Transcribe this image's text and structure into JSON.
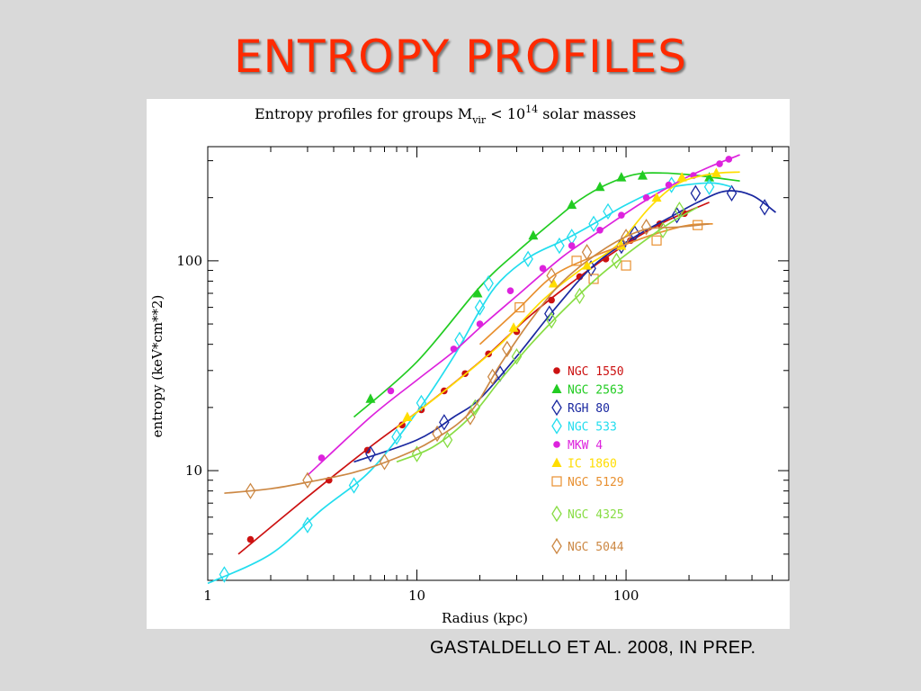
{
  "slide": {
    "title": "ENTROPY PROFILES",
    "citation": "GASTALDELLO ET AL.  2008, IN PREP."
  },
  "chart_data": {
    "type": "scatter",
    "title_parts": {
      "prefix": "Entropy profiles for groups M",
      "subscript": "vir",
      "mid": " < 10",
      "superscript": "14",
      "suffix": " solar masses"
    },
    "xlabel": "Radius (kpc)",
    "ylabel": "entropy (keV*cm**2)",
    "xscale": "log",
    "yscale": "log",
    "xlim": [
      1,
      600
    ],
    "ylim": [
      3,
      350
    ],
    "xticklabels": [
      {
        "value": 1,
        "label": "1"
      },
      {
        "value": 10,
        "label": "10"
      },
      {
        "value": 100,
        "label": "100"
      }
    ],
    "yticklabels": [
      {
        "value": 10,
        "label": "10"
      },
      {
        "value": 100,
        "label": "100"
      }
    ],
    "legend_position": "lower-right",
    "series": [
      {
        "name": "NGC 1550",
        "color": "#cc1111",
        "marker": "dot",
        "points": [
          [
            1.6,
            4.7
          ],
          [
            3.8,
            9
          ],
          [
            5.8,
            12.5
          ],
          [
            8.5,
            16.5
          ],
          [
            10.5,
            19.5
          ],
          [
            13.5,
            24
          ],
          [
            17,
            29
          ],
          [
            22,
            36
          ],
          [
            30,
            46
          ],
          [
            44,
            65
          ],
          [
            60,
            84
          ],
          [
            80,
            102
          ],
          [
            105,
            125
          ],
          [
            145,
            150
          ],
          [
            190,
            168
          ]
        ],
        "curve": [
          [
            1.4,
            4
          ],
          [
            3,
            7.5
          ],
          [
            6,
            13
          ],
          [
            10,
            19
          ],
          [
            20,
            33
          ],
          [
            35,
            55
          ],
          [
            60,
            84
          ],
          [
            100,
            120
          ],
          [
            150,
            152
          ],
          [
            250,
            190
          ]
        ]
      },
      {
        "name": "NGC 2563",
        "color": "#22cc22",
        "marker": "triangle",
        "points": [
          [
            6,
            22
          ],
          [
            19.5,
            70
          ],
          [
            36,
            132
          ],
          [
            55,
            185
          ],
          [
            75,
            225
          ],
          [
            95,
            250
          ],
          [
            120,
            255
          ],
          [
            250,
            250
          ]
        ],
        "curve": [
          [
            5,
            18
          ],
          [
            10,
            33
          ],
          [
            20,
            75
          ],
          [
            30,
            110
          ],
          [
            45,
            155
          ],
          [
            60,
            195
          ],
          [
            80,
            230
          ],
          [
            110,
            258
          ],
          [
            150,
            262
          ],
          [
            220,
            255
          ],
          [
            350,
            240
          ]
        ]
      },
      {
        "name": "RGH 80",
        "color": "#1a28a0",
        "marker": "diamond",
        "points": [
          [
            6,
            12
          ],
          [
            13.5,
            17
          ],
          [
            25,
            29
          ],
          [
            43,
            56
          ],
          [
            68,
            92
          ],
          [
            95,
            118
          ],
          [
            110,
            135
          ],
          [
            175,
            165
          ],
          [
            215,
            210
          ],
          [
            320,
            210
          ],
          [
            460,
            180
          ]
        ],
        "curve": [
          [
            5,
            11
          ],
          [
            10,
            14
          ],
          [
            15,
            18
          ],
          [
            20,
            22
          ],
          [
            30,
            35
          ],
          [
            45,
            58
          ],
          [
            70,
            95
          ],
          [
            110,
            130
          ],
          [
            160,
            160
          ],
          [
            220,
            190
          ],
          [
            300,
            215
          ],
          [
            400,
            205
          ],
          [
            520,
            170
          ]
        ]
      },
      {
        "name": "NGC 533",
        "color": "#22ddee",
        "marker": "diamond",
        "points": [
          [
            1.2,
            3.2
          ],
          [
            3,
            5.5
          ],
          [
            5,
            8.5
          ],
          [
            8,
            14.5
          ],
          [
            10.5,
            21
          ],
          [
            16,
            42
          ],
          [
            20,
            60
          ],
          [
            22,
            78
          ],
          [
            34,
            102
          ],
          [
            48,
            118
          ],
          [
            55,
            130
          ],
          [
            70,
            150
          ],
          [
            82,
            172
          ],
          [
            165,
            230
          ],
          [
            250,
            225
          ]
        ],
        "curve": [
          [
            1,
            2.9
          ],
          [
            2,
            4
          ],
          [
            3.5,
            6.5
          ],
          [
            6,
            10
          ],
          [
            10,
            19
          ],
          [
            15,
            35
          ],
          [
            20,
            58
          ],
          [
            25,
            80
          ],
          [
            35,
            105
          ],
          [
            50,
            125
          ],
          [
            70,
            150
          ],
          [
            100,
            185
          ],
          [
            150,
            220
          ],
          [
            250,
            235
          ],
          [
            320,
            225
          ]
        ]
      },
      {
        "name": "MKW 4",
        "color": "#dd22dd",
        "marker": "dot",
        "points": [
          [
            3.5,
            11.5
          ],
          [
            7.5,
            24
          ],
          [
            15,
            38
          ],
          [
            20,
            50
          ],
          [
            28,
            72
          ],
          [
            40,
            92
          ],
          [
            55,
            118
          ],
          [
            75,
            140
          ],
          [
            95,
            165
          ],
          [
            125,
            200
          ],
          [
            160,
            230
          ],
          [
            210,
            255
          ],
          [
            280,
            290
          ],
          [
            310,
            305
          ]
        ],
        "curve": [
          [
            3,
            9.5
          ],
          [
            6,
            18
          ],
          [
            10,
            27
          ],
          [
            15,
            37
          ],
          [
            20,
            48
          ],
          [
            30,
            68
          ],
          [
            50,
            105
          ],
          [
            80,
            145
          ],
          [
            120,
            190
          ],
          [
            180,
            240
          ],
          [
            250,
            280
          ],
          [
            350,
            320
          ]
        ]
      },
      {
        "name": "IC 1860",
        "color": "#ffdd00",
        "marker": "triangle",
        "points": [
          [
            9,
            18
          ],
          [
            29,
            48
          ],
          [
            45,
            78
          ],
          [
            65,
            95
          ],
          [
            95,
            118
          ],
          [
            140,
            200
          ],
          [
            185,
            250
          ],
          [
            270,
            262
          ]
        ],
        "curve": [
          [
            8,
            16
          ],
          [
            15,
            26
          ],
          [
            25,
            40
          ],
          [
            40,
            65
          ],
          [
            60,
            90
          ],
          [
            90,
            118
          ],
          [
            130,
            180
          ],
          [
            180,
            235
          ],
          [
            260,
            260
          ],
          [
            350,
            265
          ]
        ]
      },
      {
        "name": "NGC 5129",
        "color": "#e89030",
        "marker": "square",
        "points": [
          [
            31,
            60
          ],
          [
            58,
            100
          ],
          [
            70,
            82
          ],
          [
            100,
            95
          ],
          [
            140,
            125
          ],
          [
            220,
            148
          ]
        ],
        "curve": [
          [
            20,
            40
          ],
          [
            30,
            58
          ],
          [
            45,
            85
          ],
          [
            70,
            105
          ],
          [
            100,
            120
          ],
          [
            140,
            135
          ],
          [
            200,
            148
          ],
          [
            260,
            150
          ]
        ]
      },
      {
        "name": "NGC 4325",
        "color": "#88dd44",
        "marker": "diamond",
        "points": [
          [
            10,
            12
          ],
          [
            14,
            14
          ],
          [
            19,
            20
          ],
          [
            30,
            35
          ],
          [
            44,
            52
          ],
          [
            60,
            68
          ],
          [
            90,
            100
          ],
          [
            150,
            140
          ],
          [
            180,
            175
          ]
        ],
        "curve": [
          [
            8,
            11
          ],
          [
            12,
            13
          ],
          [
            18,
            18
          ],
          [
            25,
            27
          ],
          [
            35,
            40
          ],
          [
            50,
            58
          ],
          [
            75,
            85
          ],
          [
            110,
            115
          ],
          [
            160,
            150
          ],
          [
            220,
            180
          ]
        ]
      },
      {
        "name": "NGC 5044",
        "color": "#cc8844",
        "marker": "diamond",
        "points": [
          [
            1.6,
            8
          ],
          [
            3,
            9
          ],
          [
            7,
            11
          ],
          [
            12.5,
            15
          ],
          [
            18,
            18
          ],
          [
            23,
            28
          ],
          [
            27,
            38
          ],
          [
            44,
            85
          ],
          [
            65,
            110
          ],
          [
            100,
            130
          ],
          [
            125,
            145
          ]
        ],
        "curve": [
          [
            1.2,
            7.8
          ],
          [
            2,
            8.2
          ],
          [
            3,
            8.8
          ],
          [
            5,
            9.8
          ],
          [
            8,
            11.5
          ],
          [
            12,
            14
          ],
          [
            18,
            19
          ],
          [
            25,
            32
          ],
          [
            35,
            52
          ],
          [
            50,
            80
          ],
          [
            80,
            115
          ],
          [
            120,
            140
          ],
          [
            180,
            145
          ],
          [
            250,
            150
          ]
        ]
      }
    ]
  }
}
